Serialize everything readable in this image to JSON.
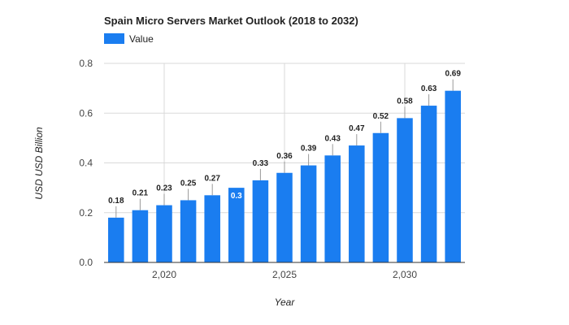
{
  "chart_data": {
    "type": "bar",
    "title": "Spain Micro Servers Market Outlook (2018 to 2032)",
    "legend": {
      "label": "Value",
      "color": "#1a7df0",
      "position": "top-left"
    },
    "xlabel": "Year",
    "ylabel": "USD USD Billion",
    "x": [
      2018,
      2019,
      2020,
      2021,
      2022,
      2023,
      2024,
      2025,
      2026,
      2027,
      2028,
      2029,
      2030,
      2031,
      2032
    ],
    "values": [
      0.18,
      0.21,
      0.23,
      0.25,
      0.27,
      0.3,
      0.33,
      0.36,
      0.39,
      0.43,
      0.47,
      0.52,
      0.58,
      0.63,
      0.69
    ],
    "data_labels": [
      "0.18",
      "0.21",
      "0.23",
      "0.25",
      "0.27",
      "0.3",
      "0.33",
      "0.36",
      "0.39",
      "0.43",
      "0.47",
      "0.52",
      "0.58",
      "0.63",
      "0.69"
    ],
    "inside_label_indices": [
      5
    ],
    "ylim": [
      0,
      0.8
    ],
    "yticks": [
      0,
      0.2,
      0.4,
      0.6,
      0.8
    ],
    "ytick_labels": [
      "0.0",
      "0.2",
      "0.4",
      "0.6",
      "0.8"
    ],
    "xlim": [
      2017.5,
      2032.5
    ],
    "xticks": [
      2020,
      2025,
      2030
    ],
    "xtick_labels": [
      "2,020",
      "2,025",
      "2,030"
    ],
    "grid": true,
    "bar_color": "#1a7df0"
  }
}
